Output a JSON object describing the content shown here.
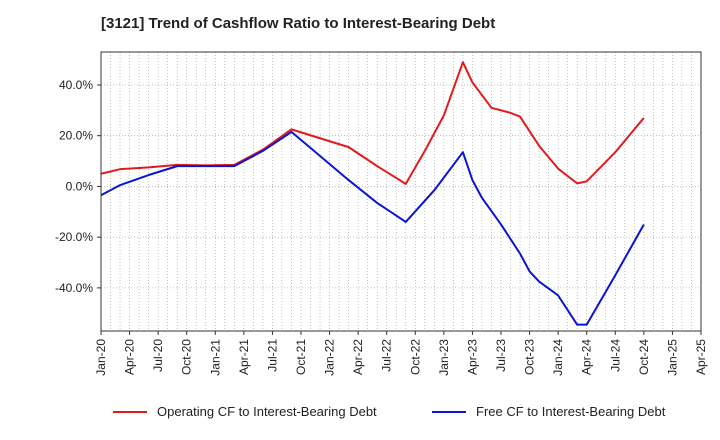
{
  "chart_data": {
    "type": "line",
    "title": "[3121]  Trend of Cashflow Ratio to Interest-Bearing Debt",
    "xlabel": "",
    "ylabel": "",
    "x_ticks": [
      "Jan-20",
      "Apr-20",
      "Jul-20",
      "Oct-20",
      "Jan-21",
      "Apr-21",
      "Jul-21",
      "Oct-21",
      "Jan-22",
      "Apr-22",
      "Jul-22",
      "Oct-22",
      "Jan-23",
      "Apr-23",
      "Jul-23",
      "Oct-23",
      "Jan-24",
      "Apr-24",
      "Jul-24",
      "Oct-24",
      "Jan-25",
      "Apr-25"
    ],
    "y_ticks": [
      -40,
      -20,
      0,
      20,
      40
    ],
    "y_tick_labels": [
      "-40.0%",
      "-20.0%",
      "0.0%",
      "20.0%",
      "40.0%"
    ],
    "ylim": [
      -57,
      53
    ],
    "grid": true,
    "legend_position": "bottom",
    "series": [
      {
        "name": "Operating CF to Interest-Bearing Debt",
        "color": "#e31a1c",
        "points": [
          [
            "Jan-20",
            5
          ],
          [
            "Mar-20",
            6.8
          ],
          [
            "Jun-20",
            7.5
          ],
          [
            "Sep-20",
            8.5
          ],
          [
            "Dec-20",
            8.3
          ],
          [
            "Mar-21",
            8.5
          ],
          [
            "Jun-21",
            14.5
          ],
          [
            "Sep-21",
            22.5
          ],
          [
            "Dec-21",
            19
          ],
          [
            "Mar-22",
            15.5
          ],
          [
            "Jun-22",
            8
          ],
          [
            "Sep-22",
            1
          ],
          [
            "Nov-22",
            14
          ],
          [
            "Jan-23",
            28
          ],
          [
            "Mar-23",
            49
          ],
          [
            "Apr-23",
            41
          ],
          [
            "Jun-23",
            31
          ],
          [
            "Aug-23",
            29
          ],
          [
            "Sep-23",
            27.5
          ],
          [
            "Nov-23",
            16
          ],
          [
            "Jan-24",
            7
          ],
          [
            "Mar-24",
            1.2
          ],
          [
            "Apr-24",
            2
          ],
          [
            "Jul-24",
            13.5
          ],
          [
            "Oct-24",
            27
          ]
        ]
      },
      {
        "name": "Free CF to Interest-Bearing Debt",
        "color": "#0a14d4",
        "points": [
          [
            "Jan-20",
            -3.5
          ],
          [
            "Mar-20",
            0.5
          ],
          [
            "Jun-20",
            4.5
          ],
          [
            "Sep-20",
            8
          ],
          [
            "Dec-20",
            8
          ],
          [
            "Mar-21",
            8
          ],
          [
            "Jun-21",
            14
          ],
          [
            "Sep-21",
            21.5
          ],
          [
            "Dec-21",
            12
          ],
          [
            "Mar-22",
            2.5
          ],
          [
            "Jun-22",
            -6.5
          ],
          [
            "Sep-22",
            -14
          ],
          [
            "Dec-22",
            -1.5
          ],
          [
            "Mar-23",
            13.5
          ],
          [
            "Apr-23",
            2.5
          ],
          [
            "May-23",
            -4.5
          ],
          [
            "Jul-23",
            -15
          ],
          [
            "Sep-23",
            -26.5
          ],
          [
            "Oct-23",
            -33.5
          ],
          [
            "Nov-23",
            -37.5
          ],
          [
            "Jan-24",
            -43
          ],
          [
            "Mar-24",
            -54.5
          ],
          [
            "Apr-24",
            -54.5
          ],
          [
            "Jul-24",
            -35
          ],
          [
            "Oct-24",
            -15
          ]
        ]
      }
    ]
  }
}
